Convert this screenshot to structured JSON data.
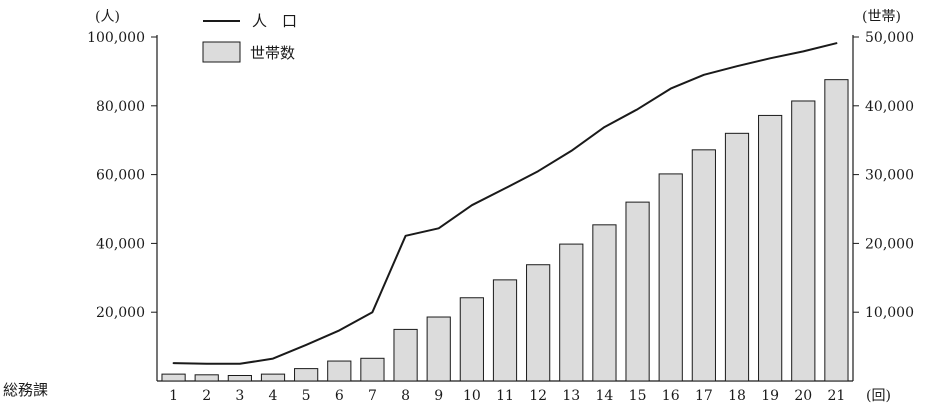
{
  "footer": {
    "department": "総務課"
  },
  "chart_data": {
    "type": "bar+line",
    "categories": [
      "1",
      "2",
      "3",
      "4",
      "5",
      "6",
      "7",
      "8",
      "9",
      "10",
      "11",
      "12",
      "13",
      "14",
      "15",
      "16",
      "17",
      "18",
      "19",
      "20",
      "21"
    ],
    "x_unit": "(回)",
    "left_axis": {
      "unit": "(人)",
      "ylim": [
        0,
        100000
      ],
      "ticks": [
        20000,
        40000,
        60000,
        80000,
        100000
      ],
      "tick_labels": [
        "20,000",
        "40,000",
        "60,000",
        "80,000",
        "100,000"
      ]
    },
    "right_axis": {
      "unit": "(世帯)",
      "ylim": [
        0,
        50000
      ],
      "ticks": [
        10000,
        20000,
        30000,
        40000,
        50000
      ],
      "tick_labels": [
        "10,000",
        "20,000",
        "30,000",
        "40,000",
        "50,000"
      ]
    },
    "legend": {
      "line_label": "人　口",
      "bar_label": "世帯数",
      "placement": "top-left"
    },
    "series": [
      {
        "name": "人　口",
        "type": "line",
        "axis": "left",
        "color": "#1a1a1a",
        "values": [
          5200,
          5000,
          5000,
          6500,
          10500,
          14700,
          20000,
          42200,
          44400,
          51100,
          56000,
          61000,
          66900,
          73800,
          79000,
          85000,
          89000,
          91500,
          93800,
          95800,
          98200
        ]
      },
      {
        "name": "世帯数",
        "type": "bar",
        "axis": "right",
        "color": "#dcdcdc",
        "values": [
          1000,
          900,
          800,
          1000,
          1800,
          2900,
          3300,
          7500,
          9300,
          12100,
          14700,
          16900,
          19900,
          22700,
          26000,
          30100,
          33600,
          36000,
          38600,
          40700,
          43800
        ]
      }
    ],
    "grid": false
  }
}
